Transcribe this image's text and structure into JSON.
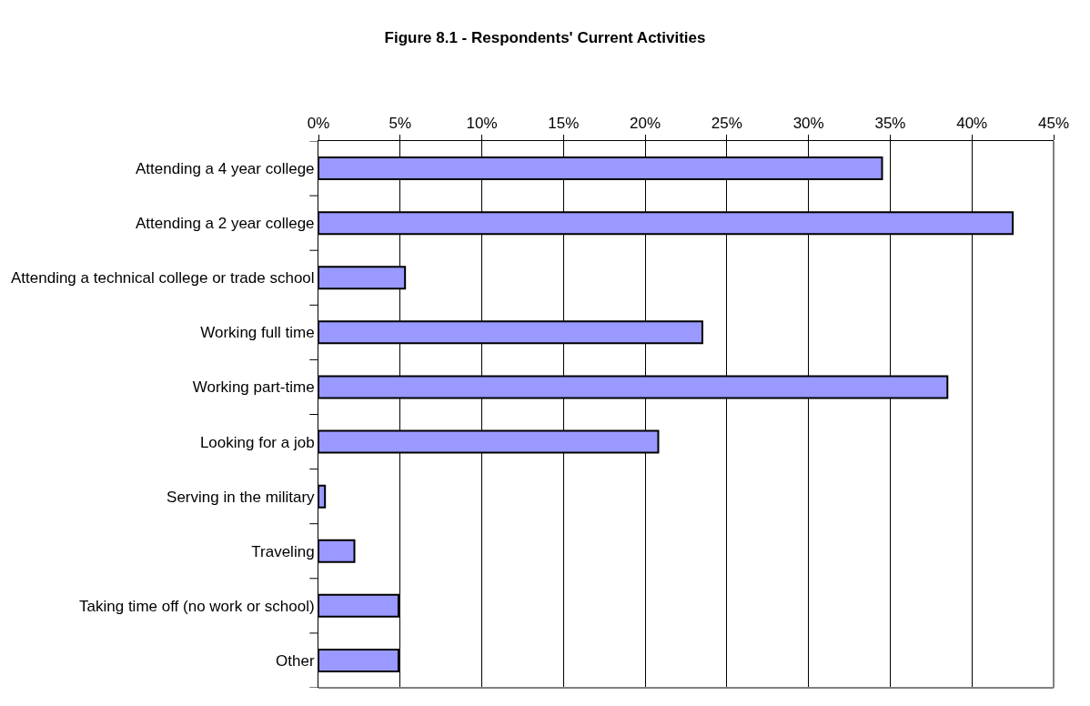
{
  "chart_data": {
    "type": "bar",
    "orientation": "horizontal",
    "title": "Figure 8.1 - Respondents' Current Activities",
    "categories": [
      "Attending a 4 year college",
      "Attending a 2 year college",
      "Attending a technical college or trade school",
      "Working full time",
      "Working part-time",
      "Looking for a job",
      "Serving in the military",
      "Traveling",
      "Taking time off (no work or school)",
      "Other"
    ],
    "values": [
      34.5,
      42.5,
      5.3,
      23.5,
      38.5,
      20.8,
      0.4,
      2.2,
      4.9,
      4.9
    ],
    "color": "#9999ff",
    "xlim": [
      0,
      45
    ],
    "xticks": [
      {
        "value": 0,
        "label": "0%"
      },
      {
        "value": 5,
        "label": "5%"
      },
      {
        "value": 10,
        "label": "10%"
      },
      {
        "value": 15,
        "label": "15%"
      },
      {
        "value": 20,
        "label": "20%"
      },
      {
        "value": 25,
        "label": "25%"
      },
      {
        "value": 30,
        "label": "30%"
      },
      {
        "value": 35,
        "label": "35%"
      },
      {
        "value": 40,
        "label": "40%"
      },
      {
        "value": 45,
        "label": "45%"
      }
    ],
    "grid": "x"
  }
}
